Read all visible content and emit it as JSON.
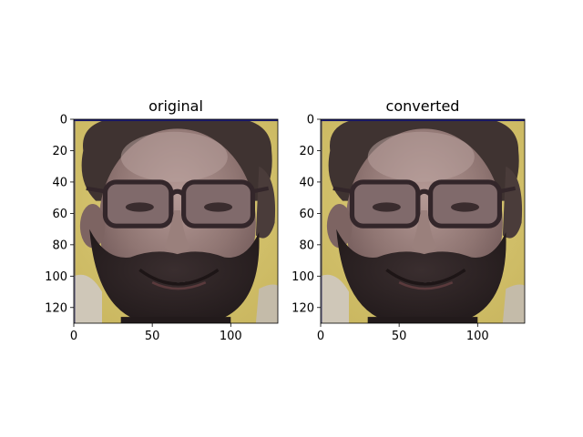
{
  "chart_data": [
    {
      "type": "image",
      "title": "original",
      "xlabel": "",
      "ylabel": "",
      "xlim": [
        0,
        130
      ],
      "ylim": [
        130,
        0
      ],
      "xticks": [
        0,
        50,
        100
      ],
      "yticks": [
        0,
        20,
        40,
        60,
        80,
        100,
        120
      ],
      "content": "face photo"
    },
    {
      "type": "image",
      "title": "converted",
      "xlabel": "",
      "ylabel": "",
      "xlim": [
        0,
        130
      ],
      "ylim": [
        130,
        0
      ],
      "xticks": [
        0,
        50,
        100
      ],
      "yticks": [
        0,
        20,
        40,
        60,
        80,
        100,
        120
      ],
      "content": "face photo"
    }
  ],
  "colors": {
    "background": "#d4c46e",
    "hair": "#3d3130",
    "skin": "#8e7472",
    "skin_light": "#a58b88",
    "beard": "#2f2526",
    "glasses": "#3a2a2e",
    "top_border": "#1a1a70"
  }
}
